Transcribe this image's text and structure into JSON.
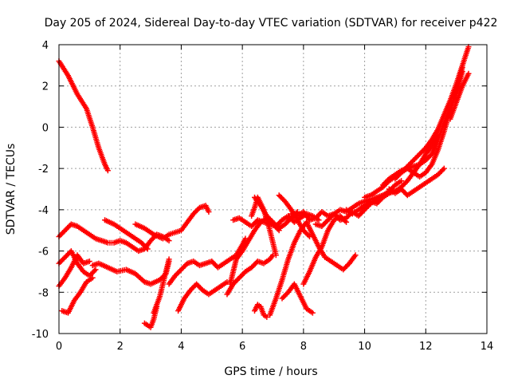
{
  "chart_data": {
    "type": "scatter",
    "title": "Day 205 of 2024, Sidereal Day-to-day VTEC variation (SDTVAR) for receiver p422",
    "xlabel": "GPS time / hours",
    "ylabel": "SDTVAR / TECUs",
    "xlim": [
      0,
      14
    ],
    "ylim": [
      -10,
      4
    ],
    "xticks": [
      "0",
      "2",
      "4",
      "6",
      "8",
      "10",
      "12",
      "14"
    ],
    "yticks": [
      "4",
      "2",
      "0",
      "-2",
      "-4",
      "-6",
      "-8",
      "-10"
    ],
    "grid": true,
    "marker": "plus",
    "marker_color": "#ff0000",
    "series": [
      {
        "x": [
          0.0,
          0.3,
          0.6,
          0.9,
          1.1,
          1.3,
          1.5,
          1.6
        ],
        "y": [
          3.2,
          2.5,
          1.6,
          0.9,
          0.0,
          -1.0,
          -1.8,
          -2.1
        ]
      },
      {
        "x": [
          0.0,
          0.2,
          0.4,
          0.6,
          0.8,
          1.0,
          1.2,
          1.4,
          1.6,
          1.8,
          2.0,
          2.2,
          2.4,
          2.6,
          2.8,
          3.0,
          3.2,
          3.4,
          3.6
        ],
        "y": [
          -5.3,
          -5.0,
          -4.7,
          -4.8,
          -5.0,
          -5.2,
          -5.4,
          -5.5,
          -5.6,
          -5.6,
          -5.5,
          -5.6,
          -5.8,
          -6.0,
          -5.9,
          -5.5,
          -5.2,
          -5.3,
          -5.5
        ]
      },
      {
        "x": [
          0.0,
          0.2,
          0.4,
          0.6,
          0.8,
          1.0
        ],
        "y": [
          -7.7,
          -7.3,
          -6.8,
          -6.2,
          -6.6,
          -6.5
        ]
      },
      {
        "x": [
          0.0,
          0.2,
          0.4,
          0.6,
          0.8,
          1.0,
          1.2
        ],
        "y": [
          -6.6,
          -6.3,
          -6.0,
          -6.6,
          -7.0,
          -7.2,
          -6.9
        ]
      },
      {
        "x": [
          0.1,
          0.3,
          0.5,
          0.7,
          0.9,
          1.1
        ],
        "y": [
          -8.9,
          -9.0,
          -8.4,
          -8.0,
          -7.5,
          -7.3
        ]
      },
      {
        "x": [
          1.1,
          1.3,
          1.6,
          1.9,
          2.2,
          2.5,
          2.8,
          3.0,
          3.3,
          3.5,
          3.6
        ],
        "y": [
          -6.7,
          -6.6,
          -6.8,
          -7.0,
          -6.9,
          -7.1,
          -7.5,
          -7.6,
          -7.4,
          -7.1,
          -6.5
        ]
      },
      {
        "x": [
          1.5,
          1.8,
          2.1,
          2.4,
          2.7,
          2.9
        ],
        "y": [
          -4.5,
          -4.7,
          -5.0,
          -5.3,
          -5.6,
          -5.9
        ]
      },
      {
        "x": [
          2.5,
          2.8,
          3.1,
          3.4,
          3.6,
          4.0,
          4.2,
          4.4,
          4.6,
          4.8,
          4.9
        ],
        "y": [
          -4.7,
          -4.9,
          -5.2,
          -5.4,
          -5.2,
          -5.0,
          -4.6,
          -4.2,
          -3.9,
          -3.8,
          -4.1
        ]
      },
      {
        "x": [
          2.8,
          3.0,
          3.1,
          3.2
        ],
        "y": [
          -9.5,
          -9.7,
          -9.3,
          -8.7
        ]
      },
      {
        "x": [
          3.1,
          3.2,
          3.3,
          3.4,
          3.5,
          3.6
        ],
        "y": [
          -9.0,
          -8.6,
          -8.2,
          -7.6,
          -7.0,
          -6.4
        ]
      },
      {
        "x": [
          3.6,
          3.8,
          4.0,
          4.2,
          4.4,
          4.6,
          4.8,
          5.0,
          5.2,
          5.4,
          5.6,
          5.8,
          6.0,
          6.1
        ],
        "y": [
          -7.6,
          -7.2,
          -6.9,
          -6.6,
          -6.5,
          -6.7,
          -6.6,
          -6.5,
          -6.8,
          -6.6,
          -6.4,
          -6.2,
          -5.7,
          -5.4
        ]
      },
      {
        "x": [
          3.9,
          4.1,
          4.3,
          4.5,
          4.7,
          4.9,
          5.2,
          5.5
        ],
        "y": [
          -8.9,
          -8.3,
          -7.9,
          -7.6,
          -7.9,
          -8.1,
          -7.8,
          -7.5
        ]
      },
      {
        "x": [
          5.5,
          5.7,
          5.9,
          6.1,
          6.3,
          6.5,
          6.7,
          6.9,
          7.0
        ],
        "y": [
          -8.1,
          -7.6,
          -7.3,
          -7.0,
          -6.8,
          -6.5,
          -6.6,
          -6.4,
          -6.2
        ]
      },
      {
        "x": [
          5.6,
          5.8,
          6.0,
          6.2,
          6.4,
          6.6,
          6.8,
          7.0,
          7.2
        ],
        "y": [
          -7.6,
          -6.4,
          -6.0,
          -5.5,
          -5.0,
          -4.6,
          -4.4,
          -4.7,
          -5.0
        ]
      },
      {
        "x": [
          5.7,
          5.9,
          6.1,
          6.3,
          6.5,
          6.7,
          6.9,
          7.1,
          7.3,
          7.5,
          7.7,
          7.9,
          8.1,
          8.3,
          8.5
        ],
        "y": [
          -4.5,
          -4.4,
          -4.6,
          -4.8,
          -4.5,
          -4.6,
          -4.7,
          -4.8,
          -4.5,
          -4.3,
          -4.6,
          -4.4,
          -4.2,
          -4.3,
          -4.5
        ]
      },
      {
        "x": [
          6.3,
          6.4,
          6.5,
          6.6,
          6.7,
          6.8,
          6.9,
          7.0,
          7.1
        ],
        "y": [
          -4.3,
          -3.9,
          -3.4,
          -3.7,
          -4.0,
          -4.5,
          -5.0,
          -5.6,
          -6.2
        ]
      },
      {
        "x": [
          6.4,
          6.6,
          6.8,
          7.0,
          7.2,
          7.4,
          7.6,
          7.8
        ],
        "y": [
          -3.4,
          -3.8,
          -4.3,
          -4.6,
          -4.9,
          -4.7,
          -4.4,
          -4.1
        ]
      },
      {
        "x": [
          6.4,
          6.5,
          6.6,
          6.7,
          6.8
        ],
        "y": [
          -8.9,
          -8.6,
          -8.7,
          -9.1,
          -9.2
        ]
      },
      {
        "x": [
          6.9,
          7.1,
          7.3,
          7.5,
          7.7,
          7.9,
          8.1,
          8.3,
          8.5,
          8.7,
          9.0,
          9.3,
          9.5,
          9.7
        ],
        "y": [
          -9.1,
          -8.3,
          -7.4,
          -6.4,
          -5.6,
          -5.0,
          -4.6,
          -5.2,
          -5.8,
          -6.3,
          -6.6,
          -6.9,
          -6.6,
          -6.2
        ]
      },
      {
        "x": [
          7.3,
          7.5,
          7.7,
          7.9,
          8.1,
          8.3
        ],
        "y": [
          -8.3,
          -8.0,
          -7.6,
          -8.2,
          -8.8,
          -9.0
        ]
      },
      {
        "x": [
          7.2,
          7.4,
          7.6,
          7.8,
          8.0,
          8.2
        ],
        "y": [
          -3.3,
          -3.6,
          -4.0,
          -4.5,
          -5.0,
          -5.3
        ]
      },
      {
        "x": [
          7.6,
          7.8,
          8.0,
          8.2,
          8.4,
          8.6,
          8.8,
          9.0,
          9.2,
          9.4,
          9.6,
          9.8,
          10.0,
          10.2,
          10.4,
          10.6
        ],
        "y": [
          -4.2,
          -4.3,
          -4.1,
          -4.5,
          -4.4,
          -4.1,
          -4.3,
          -4.2,
          -4.0,
          -4.1,
          -3.9,
          -3.7,
          -3.6,
          -3.5,
          -3.4,
          -3.3
        ]
      },
      {
        "x": [
          8.0,
          8.2,
          8.4,
          8.6,
          8.8,
          9.0,
          9.2,
          9.4
        ],
        "y": [
          -7.6,
          -7.0,
          -6.3,
          -5.8,
          -5.0,
          -4.5,
          -4.3,
          -4.6
        ]
      },
      {
        "x": [
          8.4,
          8.6,
          8.8,
          9.0,
          9.2,
          9.4,
          9.6,
          9.8,
          10.0,
          10.2,
          10.4,
          10.6,
          10.8,
          11.0,
          11.2
        ],
        "y": [
          -4.7,
          -4.8,
          -4.5,
          -4.2,
          -4.5,
          -4.4,
          -4.1,
          -4.3,
          -4.0,
          -3.7,
          -3.5,
          -3.3,
          -3.1,
          -2.8,
          -2.6
        ]
      },
      {
        "x": [
          9.4,
          9.6,
          9.8,
          10.0,
          10.2,
          10.4,
          10.6,
          10.8,
          11.0,
          11.2,
          11.4,
          11.6,
          11.8,
          12.0,
          12.2,
          12.4
        ],
        "y": [
          -4.0,
          -4.2,
          -4.0,
          -3.8,
          -3.6,
          -3.7,
          -3.4,
          -3.2,
          -3.1,
          -2.9,
          -2.6,
          -2.2,
          -1.8,
          -1.3,
          -0.9,
          -0.4
        ]
      },
      {
        "x": [
          10.0,
          10.2,
          10.4,
          10.6,
          10.8,
          11.0,
          11.2,
          11.4,
          11.6,
          11.8,
          12.0,
          12.2,
          12.4,
          12.6,
          12.8,
          13.0,
          13.2,
          13.4
        ],
        "y": [
          -3.4,
          -3.3,
          -3.1,
          -2.9,
          -2.6,
          -2.4,
          -2.2,
          -1.9,
          -1.6,
          -1.3,
          -1.0,
          -0.6,
          -0.1,
          0.6,
          1.3,
          2.1,
          3.0,
          3.9
        ]
      },
      {
        "x": [
          10.6,
          10.8,
          11.0,
          11.2,
          11.4,
          11.6,
          11.8,
          12.0,
          12.2,
          12.4,
          12.6,
          12.8,
          13.0,
          13.2
        ],
        "y": [
          -2.8,
          -2.5,
          -2.3,
          -2.1,
          -2.0,
          -1.9,
          -1.8,
          -1.6,
          -1.3,
          -0.6,
          0.2,
          0.9,
          1.7,
          2.7
        ]
      },
      {
        "x": [
          10.8,
          11.0,
          11.2,
          11.4,
          11.6,
          11.8,
          12.0,
          12.2,
          12.4,
          12.6
        ],
        "y": [
          -3.0,
          -3.2,
          -3.0,
          -3.3,
          -3.1,
          -2.9,
          -2.7,
          -2.5,
          -2.3,
          -2.0
        ]
      },
      {
        "x": [
          11.0,
          11.2,
          11.4,
          11.6,
          11.8,
          12.0,
          12.2,
          12.4,
          12.6,
          12.8,
          13.0,
          13.2
        ],
        "y": [
          -2.5,
          -2.2,
          -2.0,
          -2.2,
          -2.4,
          -2.2,
          -1.8,
          -1.1,
          -0.2,
          0.8,
          1.8,
          2.9
        ]
      },
      {
        "x": [
          12.8,
          13.0,
          13.2,
          13.4
        ],
        "y": [
          0.4,
          1.2,
          2.0,
          2.6
        ]
      }
    ]
  }
}
